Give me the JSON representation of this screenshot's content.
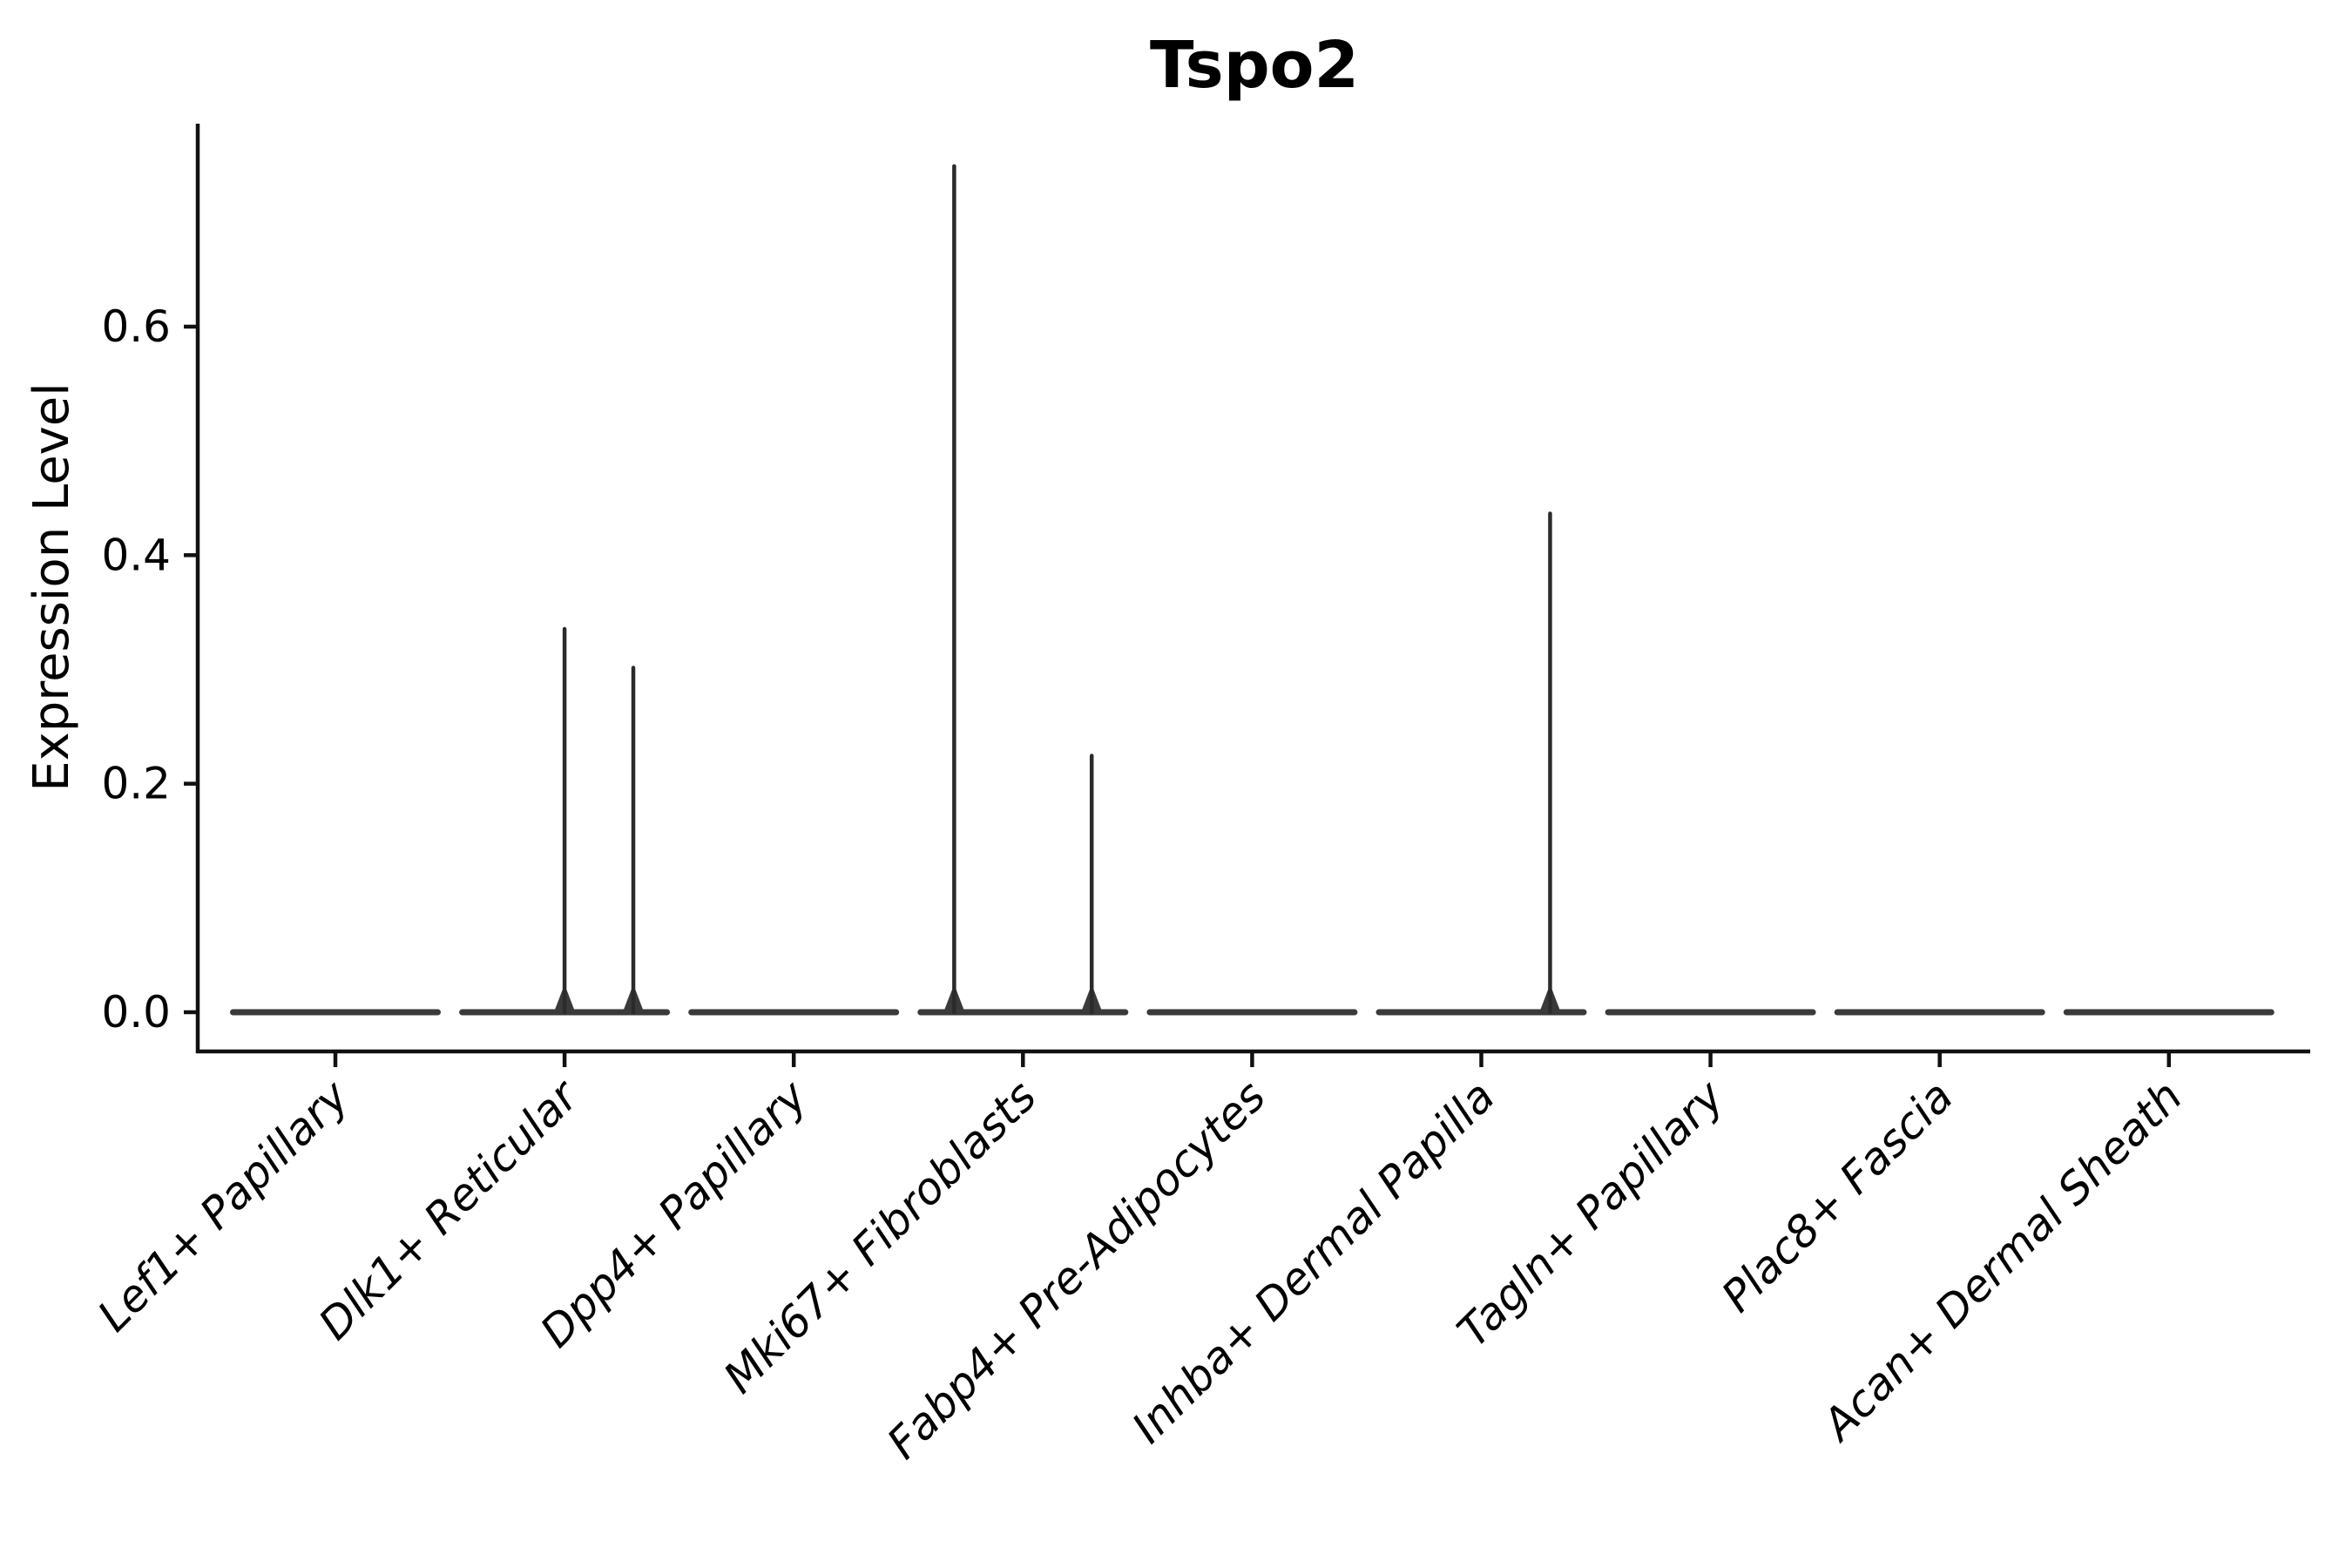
{
  "chart_data": {
    "type": "violin",
    "title": "Tspo2",
    "xlabel": "",
    "ylabel": "Expression Level",
    "yticks": [
      "0.0",
      "0.2",
      "0.4",
      "0.6"
    ],
    "ylim": [
      -0.034,
      0.778
    ],
    "grid": false,
    "legend": false,
    "x_tick_label_rotation_deg": 45,
    "x_tick_label_style": "italic",
    "violin_color": "#3a3a3a",
    "violin_width_category_units": 0.92,
    "categories": [
      "Lef1+ Papillary",
      "Dlk1+ Reticular",
      "Dpp4+ Papillary",
      "Mki67+ Fibroblasts",
      "Fabp4+ Pre-Adipocytes",
      "Inhba+ Dermal Papilla",
      "Tagln+ Papillary",
      "Plac8+ Fascia",
      "Acan+ Dermal Sheath"
    ],
    "violins": [
      {
        "category": "Lef1+ Papillary",
        "body_value": 0.0,
        "spikes": []
      },
      {
        "category": "Dlk1+ Reticular",
        "body_value": 0.0,
        "spikes": [
          {
            "x_offset": 0.0,
            "peak": 0.337
          },
          {
            "x_offset": 0.3,
            "peak": 0.303
          }
        ]
      },
      {
        "category": "Dpp4+ Papillary",
        "body_value": 0.0,
        "spikes": []
      },
      {
        "category": "Mki67+ Fibroblasts",
        "body_value": 0.0,
        "spikes": [
          {
            "x_offset": -0.3,
            "peak": 0.742
          },
          {
            "x_offset": 0.3,
            "peak": 0.226
          }
        ]
      },
      {
        "category": "Fabp4+ Pre-Adipocytes",
        "body_value": 0.0,
        "spikes": []
      },
      {
        "category": "Inhba+ Dermal Papilla",
        "body_value": 0.0,
        "spikes": [
          {
            "x_offset": 0.3,
            "peak": 0.438
          }
        ]
      },
      {
        "category": "Tagln+ Papillary",
        "body_value": 0.0,
        "spikes": []
      },
      {
        "category": "Plac8+ Fascia",
        "body_value": 0.0,
        "spikes": []
      },
      {
        "category": "Acan+ Dermal Sheath",
        "body_value": 0.0,
        "spikes": []
      }
    ]
  }
}
